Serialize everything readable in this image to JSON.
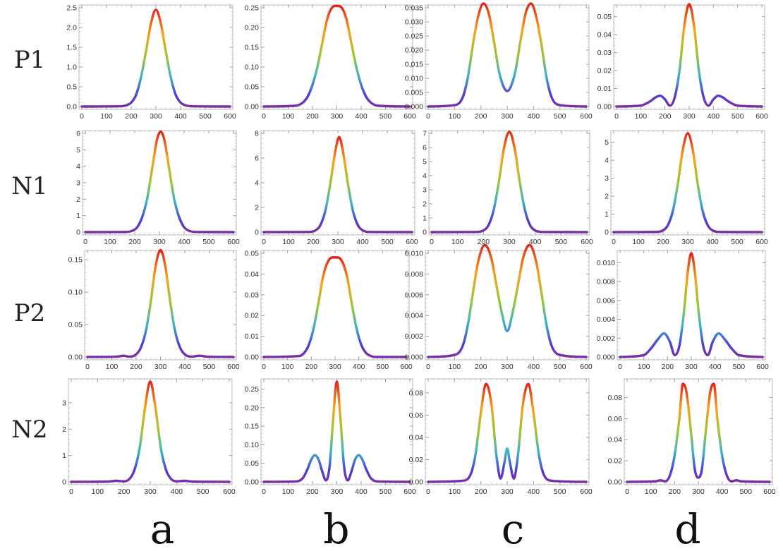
{
  "row_labels": [
    "P1",
    "N1",
    "P2",
    "N2"
  ],
  "col_labels": [
    "a",
    "b",
    "c",
    "d"
  ],
  "colors": {
    "high": "#e3231b",
    "mid_high": "#f6a21c",
    "mid": "#9bc63a",
    "mid_low": "#3db2c8",
    "low": "#4b3fd6",
    "base": "#7b2fa5"
  },
  "chart_data": [
    {
      "type": "line",
      "row": "P1",
      "col": "a",
      "xlim": [
        0,
        600
      ],
      "ylim": [
        0,
        2.5
      ],
      "xticks": [
        0,
        100,
        200,
        300,
        400,
        500,
        600
      ],
      "yticks": [
        0.0,
        0.5,
        1.0,
        1.5,
        2.0,
        2.5
      ],
      "ytick_labels": [
        "0.0",
        "0.5",
        "1.0",
        "1.5",
        "2.0",
        "2.5"
      ],
      "x": [
        0,
        150,
        180,
        200,
        220,
        240,
        260,
        280,
        300,
        320,
        340,
        360,
        380,
        400,
        420,
        450,
        600
      ],
      "y": [
        0,
        0.005,
        0.03,
        0.1,
        0.3,
        0.75,
        1.4,
        2.1,
        2.45,
        2.1,
        1.4,
        0.75,
        0.3,
        0.1,
        0.03,
        0.005,
        0
      ]
    },
    {
      "type": "line",
      "row": "P1",
      "col": "b",
      "xlim": [
        0,
        600
      ],
      "ylim": [
        0,
        0.25
      ],
      "xticks": [
        0,
        100,
        200,
        300,
        400,
        500,
        600
      ],
      "yticks": [
        0.0,
        0.05,
        0.1,
        0.15,
        0.2,
        0.25
      ],
      "ytick_labels": [
        "0.00",
        "0.05",
        "0.10",
        "0.15",
        "0.20",
        "0.25"
      ],
      "x": [
        0,
        130,
        160,
        180,
        200,
        220,
        240,
        260,
        280,
        300,
        320,
        340,
        360,
        380,
        400,
        420,
        440,
        470,
        600
      ],
      "y": [
        0,
        0.002,
        0.01,
        0.025,
        0.055,
        0.1,
        0.16,
        0.22,
        0.25,
        0.255,
        0.25,
        0.22,
        0.16,
        0.1,
        0.055,
        0.025,
        0.01,
        0.002,
        0
      ]
    },
    {
      "type": "line",
      "row": "P1",
      "col": "c",
      "xlim": [
        0,
        600
      ],
      "ylim": [
        0,
        0.035
      ],
      "xticks": [
        0,
        100,
        200,
        300,
        400,
        500,
        600
      ],
      "yticks": [
        0,
        0.005,
        0.01,
        0.015,
        0.02,
        0.025,
        0.03,
        0.035
      ],
      "ytick_labels": [
        "0.000",
        "0.005",
        "0.010",
        "0.015",
        "0.020",
        "0.025",
        "0.030",
        "0.035"
      ],
      "x": [
        0,
        100,
        130,
        150,
        170,
        190,
        210,
        230,
        250,
        270,
        300,
        330,
        350,
        370,
        390,
        410,
        430,
        450,
        470,
        500,
        600
      ],
      "y": [
        0,
        0.0005,
        0.003,
        0.01,
        0.022,
        0.032,
        0.0365,
        0.033,
        0.023,
        0.012,
        0.0055,
        0.012,
        0.023,
        0.033,
        0.0365,
        0.032,
        0.022,
        0.01,
        0.003,
        0.0005,
        0
      ]
    },
    {
      "type": "line",
      "row": "P1",
      "col": "d",
      "xlim": [
        0,
        600
      ],
      "ylim": [
        0,
        0.055
      ],
      "xticks": [
        0,
        100,
        200,
        300,
        400,
        500,
        600
      ],
      "yticks": [
        0,
        0.01,
        0.02,
        0.03,
        0.04,
        0.05
      ],
      "ytick_labels": [
        "0.00",
        "0.01",
        "0.02",
        "0.03",
        "0.04",
        "0.05"
      ],
      "x": [
        0,
        100,
        140,
        160,
        180,
        200,
        220,
        240,
        260,
        280,
        300,
        320,
        340,
        360,
        380,
        400,
        420,
        440,
        460,
        500,
        600
      ],
      "y": [
        0,
        0.0005,
        0.003,
        0.005,
        0.006,
        0.004,
        0.0005,
        0.005,
        0.02,
        0.045,
        0.057,
        0.045,
        0.02,
        0.005,
        0.0005,
        0.004,
        0.006,
        0.005,
        0.003,
        0.0005,
        0
      ]
    },
    {
      "type": "line",
      "row": "N1",
      "col": "a",
      "xlim": [
        0,
        600
      ],
      "ylim": [
        0,
        6
      ],
      "xticks": [
        0,
        100,
        200,
        300,
        400,
        500,
        600
      ],
      "yticks": [
        0,
        1,
        2,
        3,
        4,
        5,
        6
      ],
      "ytick_labels": [
        "0",
        "1",
        "2",
        "3",
        "4",
        "5",
        "6"
      ],
      "x": [
        0,
        160,
        190,
        210,
        230,
        250,
        270,
        290,
        305,
        320,
        340,
        360,
        380,
        400,
        420,
        450,
        600
      ],
      "y": [
        0,
        0.01,
        0.08,
        0.3,
        0.9,
        2.0,
        3.8,
        5.6,
        6.1,
        5.6,
        3.8,
        2.0,
        0.9,
        0.3,
        0.08,
        0.01,
        0
      ]
    },
    {
      "type": "line",
      "row": "N1",
      "col": "b",
      "xlim": [
        0,
        600
      ],
      "ylim": [
        0,
        8
      ],
      "xticks": [
        0,
        100,
        200,
        300,
        400,
        500,
        600
      ],
      "yticks": [
        0,
        2,
        4,
        6,
        8
      ],
      "ytick_labels": [
        "0",
        "2",
        "4",
        "6",
        "8"
      ],
      "x": [
        0,
        180,
        210,
        230,
        250,
        270,
        290,
        305,
        320,
        340,
        360,
        380,
        400,
        430,
        600
      ],
      "y": [
        0,
        0.01,
        0.15,
        0.6,
        1.8,
        4.0,
        6.6,
        7.7,
        6.6,
        4.0,
        1.8,
        0.6,
        0.15,
        0.01,
        0
      ]
    },
    {
      "type": "line",
      "row": "N1",
      "col": "c",
      "xlim": [
        0,
        600
      ],
      "ylim": [
        0,
        7
      ],
      "xticks": [
        0,
        100,
        200,
        300,
        400,
        500,
        600
      ],
      "yticks": [
        0,
        1,
        2,
        3,
        4,
        5,
        6,
        7
      ],
      "ytick_labels": [
        "0",
        "1",
        "2",
        "3",
        "4",
        "5",
        "6",
        "7"
      ],
      "x": [
        0,
        170,
        200,
        220,
        240,
        260,
        280,
        300,
        320,
        340,
        360,
        380,
        400,
        430,
        600
      ],
      "y": [
        0,
        0.01,
        0.12,
        0.5,
        1.6,
        3.6,
        6.0,
        7.1,
        6.0,
        3.6,
        1.6,
        0.5,
        0.12,
        0.01,
        0
      ]
    },
    {
      "type": "line",
      "row": "N1",
      "col": "d",
      "xlim": [
        0,
        600
      ],
      "ylim": [
        0,
        5.5
      ],
      "xticks": [
        0,
        100,
        200,
        300,
        400,
        500,
        600
      ],
      "yticks": [
        0,
        1,
        2,
        3,
        4,
        5
      ],
      "ytick_labels": [
        "0",
        "1",
        "2",
        "3",
        "4",
        "5"
      ],
      "x": [
        0,
        170,
        200,
        220,
        240,
        260,
        280,
        300,
        320,
        340,
        360,
        380,
        400,
        430,
        600
      ],
      "y": [
        0,
        0.01,
        0.1,
        0.4,
        1.2,
        2.7,
        4.6,
        5.5,
        4.6,
        2.7,
        1.2,
        0.4,
        0.1,
        0.01,
        0
      ]
    },
    {
      "type": "line",
      "row": "P2",
      "col": "a",
      "xlim": [
        0,
        600
      ],
      "ylim": [
        0,
        0.16
      ],
      "xticks": [
        0,
        100,
        200,
        300,
        400,
        500,
        600
      ],
      "yticks": [
        0,
        0.05,
        0.1,
        0.15
      ],
      "ytick_labels": [
        "0.00",
        "0.05",
        "0.10",
        "0.15"
      ],
      "x": [
        0,
        120,
        150,
        170,
        200,
        220,
        240,
        260,
        280,
        300,
        320,
        340,
        360,
        380,
        400,
        430,
        460,
        490,
        600
      ],
      "y": [
        0,
        0.0005,
        0.002,
        0.0005,
        0.004,
        0.015,
        0.04,
        0.085,
        0.14,
        0.165,
        0.14,
        0.085,
        0.04,
        0.015,
        0.004,
        0.0005,
        0.002,
        0.0005,
        0
      ]
    },
    {
      "type": "line",
      "row": "P2",
      "col": "b",
      "xlim": [
        0,
        600
      ],
      "ylim": [
        0,
        0.05
      ],
      "xticks": [
        0,
        100,
        200,
        300,
        400,
        500,
        600
      ],
      "yticks": [
        0,
        0.01,
        0.02,
        0.03,
        0.04,
        0.05
      ],
      "ytick_labels": [
        "0.00",
        "0.01",
        "0.02",
        "0.03",
        "0.04",
        "0.05"
      ],
      "x": [
        0,
        150,
        170,
        190,
        210,
        230,
        250,
        270,
        290,
        310,
        330,
        350,
        370,
        390,
        410,
        430,
        450,
        470,
        600
      ],
      "y": [
        0,
        0.0005,
        0.002,
        0.006,
        0.014,
        0.026,
        0.039,
        0.046,
        0.048,
        0.048,
        0.046,
        0.039,
        0.026,
        0.014,
        0.006,
        0.002,
        0.0005,
        0,
        0
      ]
    },
    {
      "type": "line",
      "row": "P2",
      "col": "c",
      "xlim": [
        0,
        600
      ],
      "ylim": [
        0,
        0.01
      ],
      "xticks": [
        0,
        100,
        200,
        300,
        400,
        500,
        600
      ],
      "yticks": [
        0,
        0.002,
        0.004,
        0.006,
        0.008,
        0.01
      ],
      "ytick_labels": [
        "0.000",
        "0.002",
        "0.004",
        "0.006",
        "0.008",
        "0.010"
      ],
      "x": [
        0,
        100,
        130,
        150,
        170,
        190,
        215,
        240,
        260,
        280,
        300,
        320,
        340,
        360,
        385,
        410,
        430,
        450,
        470,
        500,
        600
      ],
      "y": [
        0,
        0.0002,
        0.001,
        0.003,
        0.0062,
        0.0092,
        0.0108,
        0.0095,
        0.0068,
        0.0042,
        0.0025,
        0.0042,
        0.0068,
        0.0095,
        0.0108,
        0.0092,
        0.0062,
        0.003,
        0.001,
        0.0002,
        0
      ]
    },
    {
      "type": "line",
      "row": "P2",
      "col": "d",
      "xlim": [
        0,
        600
      ],
      "ylim": [
        0,
        0.011
      ],
      "xticks": [
        0,
        100,
        200,
        300,
        400,
        500,
        600
      ],
      "yticks": [
        0,
        0.002,
        0.004,
        0.006,
        0.008,
        0.01
      ],
      "ytick_labels": [
        "0.000",
        "0.002",
        "0.004",
        "0.006",
        "0.008",
        "0.010"
      ],
      "x": [
        0,
        100,
        130,
        160,
        185,
        210,
        230,
        250,
        270,
        285,
        300,
        315,
        330,
        350,
        370,
        390,
        415,
        440,
        470,
        500,
        600
      ],
      "y": [
        0,
        0.0002,
        0.0009,
        0.0019,
        0.0025,
        0.0016,
        0.0002,
        0.0012,
        0.005,
        0.009,
        0.011,
        0.009,
        0.005,
        0.0012,
        0.0002,
        0.0016,
        0.0025,
        0.0019,
        0.0009,
        0.0002,
        0
      ]
    },
    {
      "type": "line",
      "row": "N2",
      "col": "a",
      "xlim": [
        0,
        600
      ],
      "ylim": [
        0,
        3.8
      ],
      "xticks": [
        0,
        100,
        200,
        300,
        400,
        500,
        600
      ],
      "yticks": [
        0,
        1,
        2,
        3
      ],
      "ytick_labels": [
        "0",
        "1",
        "2",
        "3"
      ],
      "x": [
        0,
        140,
        170,
        200,
        220,
        240,
        260,
        280,
        300,
        320,
        340,
        360,
        380,
        400,
        430,
        460,
        600
      ],
      "y": [
        0,
        0.01,
        0.04,
        0.02,
        0.1,
        0.45,
        1.3,
        2.8,
        3.8,
        2.8,
        1.3,
        0.45,
        0.1,
        0.02,
        0.04,
        0.01,
        0
      ]
    },
    {
      "type": "line",
      "row": "N2",
      "col": "b",
      "xlim": [
        0,
        600
      ],
      "ylim": [
        0,
        0.27
      ],
      "xticks": [
        0,
        100,
        200,
        300,
        400,
        500,
        600
      ],
      "yticks": [
        0,
        0.05,
        0.1,
        0.15,
        0.2,
        0.25
      ],
      "ytick_labels": [
        "0.00",
        "0.05",
        "0.10",
        "0.15",
        "0.20",
        "0.25"
      ],
      "x": [
        0,
        130,
        160,
        180,
        195,
        210,
        225,
        240,
        255,
        270,
        285,
        300,
        315,
        330,
        345,
        360,
        375,
        390,
        405,
        420,
        440,
        470,
        600
      ],
      "y": [
        0,
        0.001,
        0.01,
        0.035,
        0.06,
        0.072,
        0.06,
        0.028,
        0.004,
        0.04,
        0.17,
        0.27,
        0.17,
        0.04,
        0.004,
        0.028,
        0.06,
        0.072,
        0.06,
        0.035,
        0.01,
        0.001,
        0
      ]
    },
    {
      "type": "line",
      "row": "N2",
      "col": "c",
      "xlim": [
        0,
        600
      ],
      "ylim": [
        0,
        0.09
      ],
      "xticks": [
        0,
        100,
        200,
        300,
        400,
        500,
        600
      ],
      "yticks": [
        0,
        0.02,
        0.04,
        0.06,
        0.08
      ],
      "ytick_labels": [
        "0.00",
        "0.02",
        "0.04",
        "0.06",
        "0.08"
      ],
      "x": [
        0,
        130,
        160,
        180,
        200,
        220,
        240,
        260,
        275,
        290,
        300,
        310,
        325,
        340,
        360,
        380,
        400,
        420,
        440,
        470,
        600
      ],
      "y": [
        0,
        0.001,
        0.006,
        0.025,
        0.062,
        0.088,
        0.07,
        0.022,
        0.003,
        0.018,
        0.03,
        0.018,
        0.003,
        0.022,
        0.07,
        0.088,
        0.062,
        0.025,
        0.006,
        0.001,
        0
      ]
    },
    {
      "type": "line",
      "row": "N2",
      "col": "d",
      "xlim": [
        0,
        600
      ],
      "ylim": [
        0,
        0.095
      ],
      "xticks": [
        0,
        100,
        200,
        300,
        400,
        500,
        600
      ],
      "yticks": [
        0,
        0.02,
        0.04,
        0.06,
        0.08
      ],
      "ytick_labels": [
        "0.00",
        "0.02",
        "0.04",
        "0.06",
        "0.08"
      ],
      "x": [
        0,
        120,
        140,
        160,
        180,
        200,
        220,
        235,
        250,
        270,
        285,
        300,
        315,
        330,
        350,
        365,
        380,
        400,
        420,
        440,
        460,
        480,
        600
      ],
      "y": [
        0,
        0.0005,
        0.0015,
        0.0005,
        0.006,
        0.025,
        0.06,
        0.093,
        0.085,
        0.045,
        0.012,
        0.004,
        0.012,
        0.045,
        0.085,
        0.093,
        0.06,
        0.025,
        0.006,
        0.0005,
        0.0015,
        0.0005,
        0
      ]
    }
  ]
}
